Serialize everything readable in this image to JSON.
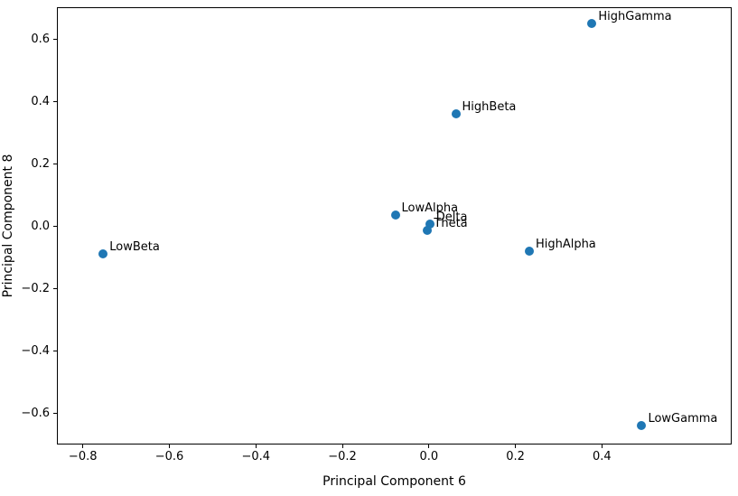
{
  "chart_data": {
    "type": "scatter",
    "title": "",
    "xlabel": "Principal Component 6",
    "ylabel": "Principal Component 8",
    "xlim": [
      -0.86,
      0.7
    ],
    "ylim": [
      -0.7,
      0.704
    ],
    "grid": false,
    "legend": "none",
    "marker_color": "#1f77b4",
    "x_ticks": [
      {
        "v": -0.8,
        "label": "−0.8"
      },
      {
        "v": -0.6,
        "label": "−0.6"
      },
      {
        "v": -0.4,
        "label": "−0.4"
      },
      {
        "v": -0.2,
        "label": "−0.2"
      },
      {
        "v": 0.0,
        "label": "0.0"
      },
      {
        "v": 0.2,
        "label": "0.2"
      },
      {
        "v": 0.4,
        "label": "0.4"
      }
    ],
    "y_ticks": [
      {
        "v": 0.6,
        "label": "0.6"
      },
      {
        "v": 0.4,
        "label": "0.4"
      },
      {
        "v": 0.2,
        "label": "0.2"
      },
      {
        "v": 0.0,
        "label": "0.0"
      },
      {
        "v": -0.2,
        "label": "−0.2"
      },
      {
        "v": -0.4,
        "label": "−0.4"
      },
      {
        "v": -0.6,
        "label": "−0.6"
      }
    ],
    "points": [
      {
        "label": "HighGamma",
        "x": 0.375,
        "y": 0.655
      },
      {
        "label": "HighBeta",
        "x": 0.06,
        "y": 0.365
      },
      {
        "label": "LowAlpha",
        "x": -0.08,
        "y": 0.04
      },
      {
        "label": "Delta",
        "x": 0.0,
        "y": 0.01
      },
      {
        "label": "Theta",
        "x": -0.005,
        "y": -0.01
      },
      {
        "label": "HighAlpha",
        "x": 0.23,
        "y": -0.075
      },
      {
        "label": "LowBeta",
        "x": -0.755,
        "y": -0.085
      },
      {
        "label": "LowGamma",
        "x": 0.49,
        "y": -0.635
      }
    ]
  }
}
